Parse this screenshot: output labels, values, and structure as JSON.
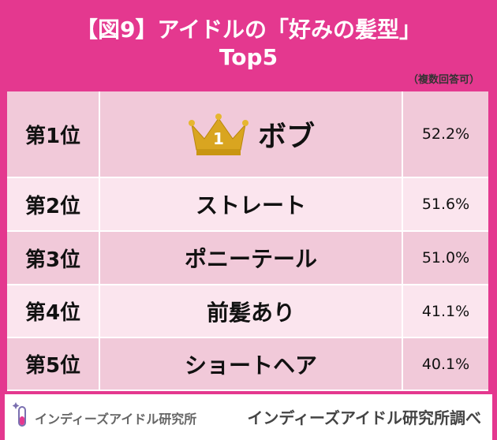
{
  "header": {
    "title": "【図9】アイドルの「好みの髪型」",
    "subtitle": "Top5",
    "note": "（複数回答可）"
  },
  "table": {
    "rows": [
      [
        "第1位",
        "ボブ",
        "52.2%"
      ],
      [
        "第2位",
        "ストレート",
        "51.6%"
      ],
      [
        "第3位",
        "ポニーテール",
        "51.0%"
      ],
      [
        "第4位",
        "前髪あり",
        "41.1%"
      ],
      [
        "第5位",
        "ショートヘア",
        "40.1%"
      ]
    ],
    "crown_label": "1"
  },
  "footer": {
    "logo": "インディーズアイドル研究所",
    "source": "インディーズアイドル研究所調べ"
  }
}
